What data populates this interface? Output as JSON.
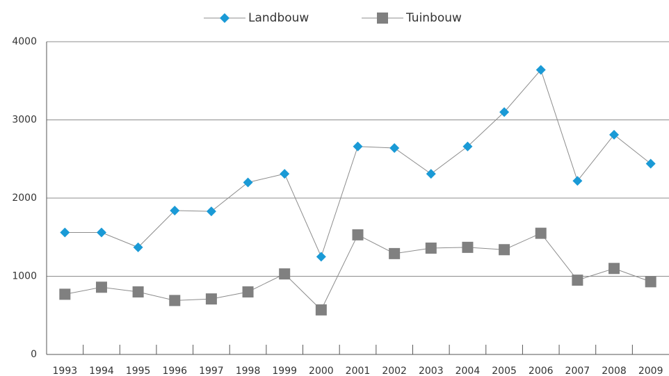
{
  "chart_data": {
    "type": "line",
    "categories": [
      "1993",
      "1994",
      "1995",
      "1996",
      "1997",
      "1998",
      "1999",
      "2000",
      "2001",
      "2002",
      "2003",
      "2004",
      "2005",
      "2006",
      "2007",
      "2008",
      "2009"
    ],
    "series": [
      {
        "name": "Landbouw",
        "color": "#1a9ad6",
        "marker": "diamond",
        "values": [
          1560,
          1560,
          1370,
          1840,
          1830,
          2200,
          2310,
          1250,
          2660,
          2640,
          2310,
          2660,
          3100,
          3640,
          2220,
          2810,
          2440
        ]
      },
      {
        "name": "Tuinbouw",
        "color": "#808080",
        "marker": "square",
        "values": [
          770,
          860,
          800,
          690,
          710,
          800,
          1030,
          570,
          1530,
          1290,
          1360,
          1370,
          1340,
          1550,
          950,
          1100,
          930
        ]
      }
    ],
    "line_color": "#8c8c8c",
    "ylim": [
      0,
      4000
    ],
    "yticks": [
      0,
      1000,
      2000,
      3000,
      4000
    ],
    "grid": true,
    "legend": "top"
  }
}
